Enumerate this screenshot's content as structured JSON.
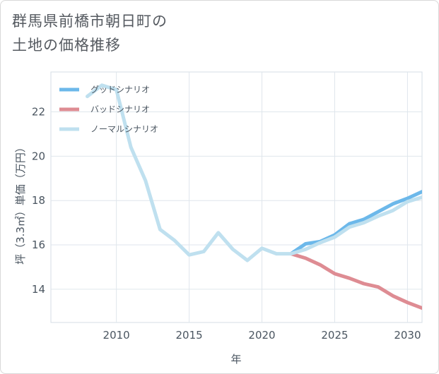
{
  "title_line1": "群馬県前橋市朝日町の",
  "title_line2": "土地の価格推移",
  "chart_data": {
    "type": "line",
    "xlabel": "年",
    "ylabel": "坪（3.3㎡）単価（万円）",
    "xlim": [
      2005.5,
      2031
    ],
    "ylim": [
      12.5,
      23.8
    ],
    "xticks": [
      2010,
      2015,
      2020,
      2025,
      2030
    ],
    "yticks": [
      14,
      16,
      18,
      20,
      22
    ],
    "grid": true,
    "legend_position": "top-left",
    "series": [
      {
        "name": "グッドシナリオ",
        "color": "#6cb8ea",
        "x": [
          2022,
          2023,
          2024,
          2025,
          2026,
          2027,
          2028,
          2029,
          2030,
          2031
        ],
        "values": [
          15.6,
          16.05,
          16.15,
          16.45,
          16.95,
          17.15,
          17.5,
          17.85,
          18.1,
          18.4
        ]
      },
      {
        "name": "バッドシナリオ",
        "color": "#de8c93",
        "x": [
          2022,
          2023,
          2024,
          2025,
          2026,
          2027,
          2028,
          2029,
          2030,
          2031
        ],
        "values": [
          15.6,
          15.4,
          15.1,
          14.7,
          14.5,
          14.25,
          14.1,
          13.7,
          13.4,
          13.15
        ]
      },
      {
        "name": "ノーマルシナリオ",
        "color": "#bfe0ef",
        "x": [
          2008,
          2009,
          2010,
          2011,
          2012,
          2013,
          2014,
          2015,
          2016,
          2017,
          2018,
          2019,
          2020,
          2021,
          2022,
          2023,
          2024,
          2025,
          2026,
          2027,
          2028,
          2029,
          2030,
          2031
        ],
        "values": [
          22.7,
          23.2,
          23.0,
          20.4,
          18.9,
          16.7,
          16.2,
          15.55,
          15.7,
          16.55,
          15.8,
          15.3,
          15.85,
          15.6,
          15.6,
          15.8,
          16.1,
          16.35,
          16.8,
          17.0,
          17.3,
          17.55,
          17.95,
          18.15
        ]
      }
    ]
  }
}
